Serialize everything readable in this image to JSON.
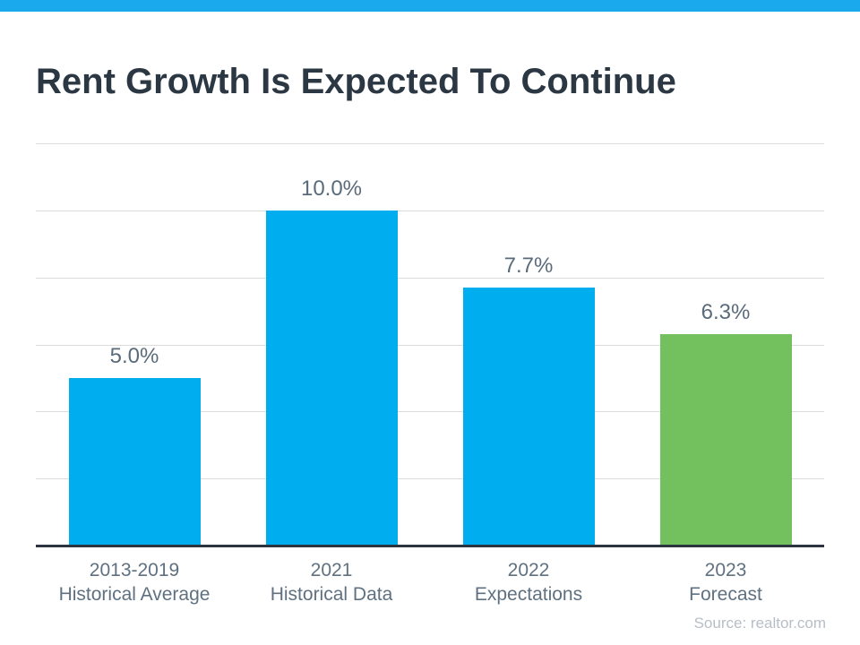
{
  "page": {
    "title": "Rent Growth Is Expected To Continue",
    "source_note": "Source: realtor.com",
    "accent_color": "#1AA9EC",
    "axis_color": "#2B3440",
    "gridline_color": "#DBDBDB"
  },
  "chart_data": {
    "type": "bar",
    "title": "Rent Growth Is Expected To Continue",
    "categories": [
      [
        "2013-2019",
        "Historical Average"
      ],
      [
        "2021",
        "Historical Data"
      ],
      [
        "2022",
        "Expectations"
      ],
      [
        "2023",
        "Forecast"
      ]
    ],
    "values": [
      5.0,
      10.0,
      7.7,
      6.3
    ],
    "value_labels": [
      "5.0%",
      "10.0%",
      "7.7%",
      "6.3%"
    ],
    "bar_colors": [
      "#00AEEF",
      "#00AEEF",
      "#00AEEF",
      "#72C15E"
    ],
    "xlabel": "",
    "ylabel": "",
    "ylim": [
      0,
      12
    ],
    "gridline_values": [
      2,
      4,
      6,
      8,
      10,
      12
    ],
    "grid": true,
    "legend": false,
    "annotation": "Source: realtor.com"
  }
}
